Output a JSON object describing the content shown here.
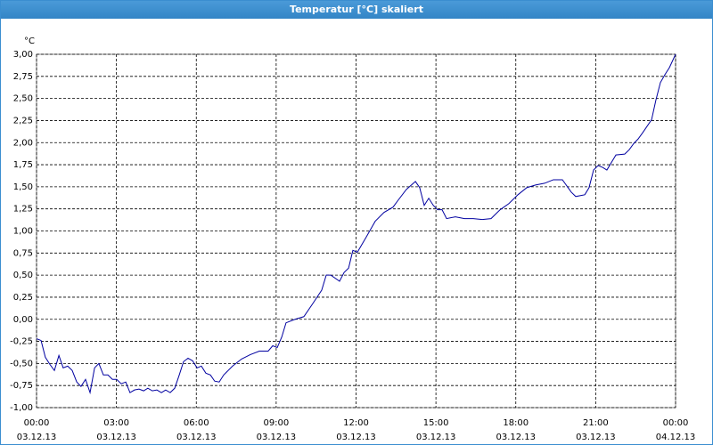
{
  "window_title": "Temperatur [°C] skaliert",
  "chart_data": {
    "type": "line",
    "y_unit": "°C",
    "xlim": [
      0,
      24
    ],
    "ylim": [
      -1,
      3
    ],
    "xticks": [
      {
        "value": 0,
        "label": "00:00"
      },
      {
        "value": 3,
        "label": "03:00"
      },
      {
        "value": 6,
        "label": "06:00"
      },
      {
        "value": 9,
        "label": "09:00"
      },
      {
        "value": 12,
        "label": "12:00"
      },
      {
        "value": 15,
        "label": "15:00"
      },
      {
        "value": 18,
        "label": "18:00"
      },
      {
        "value": 21,
        "label": "21:00"
      },
      {
        "value": 24,
        "label": "00:00"
      }
    ],
    "xtick_dates": [
      "03.12.13",
      "03.12.13",
      "03.12.13",
      "03.12.13",
      "03.12.13",
      "03.12.13",
      "03.12.13",
      "03.12.13",
      "04.12.13"
    ],
    "yticks": [
      {
        "value": -1,
        "label": "-1,00"
      },
      {
        "value": -0.75,
        "label": "-0,75"
      },
      {
        "value": -0.5,
        "label": "-0,50"
      },
      {
        "value": -0.25,
        "label": "-0,25"
      },
      {
        "value": 0,
        "label": "0,00"
      },
      {
        "value": 0.25,
        "label": "0,25"
      },
      {
        "value": 0.5,
        "label": "0,50"
      },
      {
        "value": 0.75,
        "label": "0,75"
      },
      {
        "value": 1,
        "label": "1,00"
      },
      {
        "value": 1.25,
        "label": "1,25"
      },
      {
        "value": 1.5,
        "label": "1,50"
      },
      {
        "value": 1.75,
        "label": "1,75"
      },
      {
        "value": 2,
        "label": "2,00"
      },
      {
        "value": 2.25,
        "label": "2,25"
      },
      {
        "value": 2.5,
        "label": "2,50"
      },
      {
        "value": 2.75,
        "label": "2,75"
      },
      {
        "value": 3,
        "label": "3,00"
      }
    ],
    "grid": true,
    "x": [
      0,
      0.17,
      0.33,
      0.5,
      0.67,
      0.84,
      1.0,
      1.17,
      1.34,
      1.51,
      1.67,
      1.84,
      2.01,
      2.18,
      2.34,
      2.51,
      2.68,
      2.85,
      3.01,
      3.18,
      3.35,
      3.51,
      3.68,
      3.85,
      4.02,
      4.18,
      4.35,
      4.52,
      4.69,
      4.85,
      5.02,
      5.19,
      5.36,
      5.52,
      5.69,
      5.86,
      6.03,
      6.19,
      6.36,
      6.53,
      6.69,
      6.86,
      7.03,
      7.36,
      7.7,
      8.03,
      8.37,
      8.7,
      8.87,
      9.04,
      9.21,
      9.37,
      9.71,
      10.04,
      10.38,
      10.71,
      10.88,
      11.05,
      11.38,
      11.55,
      11.72,
      11.88,
      12.05,
      12.38,
      12.72,
      13.05,
      13.39,
      13.56,
      13.89,
      14.23,
      14.39,
      14.56,
      14.73,
      14.9,
      15.06,
      15.23,
      15.4,
      15.73,
      16.07,
      16.4,
      16.74,
      17.07,
      17.41,
      17.74,
      18.08,
      18.41,
      18.74,
      19.08,
      19.41,
      19.75,
      20.08,
      20.25,
      20.59,
      20.75,
      20.92,
      21.09,
      21.26,
      21.42,
      21.76,
      22.09,
      22.26,
      22.43,
      22.59,
      22.76,
      23.1,
      23.26,
      23.43,
      23.6,
      23.77,
      24.0
    ],
    "series": [
      {
        "color": "#0000a0",
        "values": [
          -0.22,
          -0.24,
          -0.43,
          -0.51,
          -0.58,
          -0.41,
          -0.55,
          -0.53,
          -0.58,
          -0.71,
          -0.76,
          -0.68,
          -0.83,
          -0.55,
          -0.5,
          -0.63,
          -0.63,
          -0.68,
          -0.68,
          -0.73,
          -0.71,
          -0.83,
          -0.8,
          -0.79,
          -0.81,
          -0.78,
          -0.81,
          -0.8,
          -0.83,
          -0.8,
          -0.83,
          -0.78,
          -0.63,
          -0.48,
          -0.44,
          -0.47,
          -0.55,
          -0.53,
          -0.61,
          -0.63,
          -0.7,
          -0.71,
          -0.63,
          -0.53,
          -0.45,
          -0.4,
          -0.36,
          -0.36,
          -0.3,
          -0.32,
          -0.2,
          -0.04,
          0.0,
          0.03,
          0.18,
          0.33,
          0.5,
          0.5,
          0.43,
          0.53,
          0.58,
          0.78,
          0.76,
          0.93,
          1.11,
          1.21,
          1.27,
          1.34,
          1.47,
          1.56,
          1.49,
          1.29,
          1.37,
          1.29,
          1.24,
          1.24,
          1.14,
          1.16,
          1.14,
          1.14,
          1.13,
          1.14,
          1.24,
          1.31,
          1.41,
          1.49,
          1.52,
          1.54,
          1.58,
          1.58,
          1.44,
          1.39,
          1.41,
          1.49,
          1.69,
          1.74,
          1.72,
          1.69,
          1.86,
          1.87,
          1.92,
          1.99,
          2.04,
          2.11,
          2.26,
          2.48,
          2.68,
          2.77,
          2.85,
          3.0
        ]
      }
    ]
  }
}
